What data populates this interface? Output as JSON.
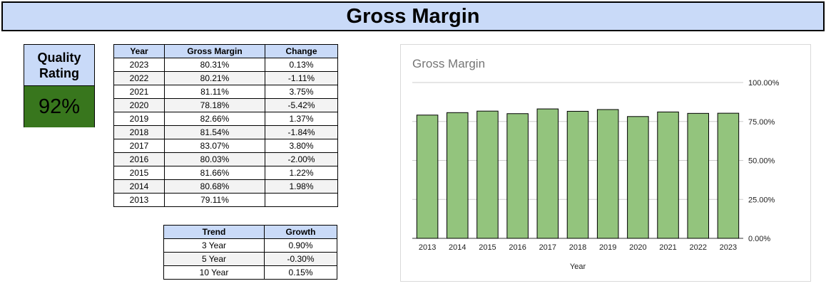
{
  "header": {
    "title": "Gross Margin"
  },
  "quality": {
    "label": "Quality\nRating",
    "value": "92%",
    "value_color": "#38761d"
  },
  "main_table": {
    "headers": [
      "Year",
      "Gross Margin",
      "Change"
    ],
    "rows": [
      [
        "2023",
        "80.31%",
        "0.13%"
      ],
      [
        "2022",
        "80.21%",
        "-1.11%"
      ],
      [
        "2021",
        "81.11%",
        "3.75%"
      ],
      [
        "2020",
        "78.18%",
        "-5.42%"
      ],
      [
        "2019",
        "82.66%",
        "1.37%"
      ],
      [
        "2018",
        "81.54%",
        "-1.84%"
      ],
      [
        "2017",
        "83.07%",
        "3.80%"
      ],
      [
        "2016",
        "80.03%",
        "-2.00%"
      ],
      [
        "2015",
        "81.66%",
        "1.22%"
      ],
      [
        "2014",
        "80.68%",
        "1.98%"
      ],
      [
        "2013",
        "79.11%",
        ""
      ]
    ]
  },
  "trend_table": {
    "headers": [
      "Trend",
      "Growth"
    ],
    "rows": [
      [
        "3 Year",
        "0.90%"
      ],
      [
        "5 Year",
        "-0.30%"
      ],
      [
        "10 Year",
        "0.15%"
      ]
    ]
  },
  "colors": {
    "header_bg": "#c9daf8",
    "bar_fill": "#93c47d",
    "bar_stroke": "#000000"
  },
  "chart_data": {
    "type": "bar",
    "title": "Gross Margin",
    "xlabel": "Year",
    "ylabel": "",
    "categories": [
      "2013",
      "2014",
      "2015",
      "2016",
      "2017",
      "2018",
      "2019",
      "2020",
      "2021",
      "2022",
      "2023"
    ],
    "values": [
      79.11,
      80.68,
      81.66,
      80.03,
      83.07,
      81.54,
      82.66,
      78.18,
      81.11,
      80.21,
      80.31
    ],
    "ylim": [
      0,
      100
    ],
    "yticks": [
      "0.00%",
      "25.00%",
      "50.00%",
      "75.00%",
      "100.00%"
    ],
    "ytick_values": [
      0,
      25,
      50,
      75,
      100
    ],
    "grid": true,
    "legend": "none",
    "y_axis_side": "right"
  }
}
